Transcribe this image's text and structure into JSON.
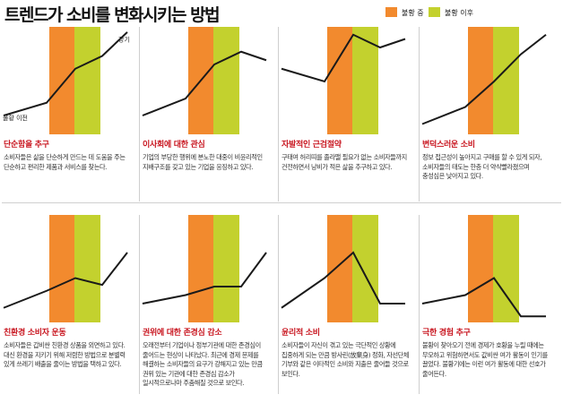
{
  "title": "트렌드가 소비를 변화시키는 방법",
  "legend": [
    {
      "label": "불황 중",
      "color": "#f28a2e"
    },
    {
      "label": "불황 이후",
      "color": "#c3d12e"
    }
  ],
  "colors": {
    "during": "#f28a2e",
    "after": "#c3d12e",
    "line": "#1a1a1a",
    "title_red": "#c8141e"
  },
  "chart_data": [
    {
      "type": "line",
      "title": "단순함을 추구",
      "description": "소비자들은 삶을 단순하게 만드는 데 도움을 주는 단순하고 편리한 제품과 서비스를 찾는다.",
      "x": [
        0,
        1,
        2,
        3,
        4
      ],
      "y": [
        20,
        35,
        75,
        90,
        118
      ],
      "annotations": [
        {
          "text": "장기",
          "at": 3
        },
        {
          "text": "불황 이전",
          "at": 0
        }
      ]
    },
    {
      "type": "line",
      "title": "이사회에 대한 관심",
      "description": "기업의 부당한 행위에 분노한 대중이 비윤리적인 지배구조를 갖고 있는 기업을 응징하고 있다.",
      "x": [
        0,
        1,
        2,
        3,
        4
      ],
      "y": [
        20,
        40,
        80,
        95,
        85
      ],
      "annotations": []
    },
    {
      "type": "line",
      "title": "자발적인 근검절약",
      "description": "구태여 허리띠를 졸라맬 필요가 없는 소비자들까지 건전하면서 낭비가 적은 삶을 추구하고 있다.",
      "x": [
        0,
        1,
        2,
        3,
        4
      ],
      "y": [
        75,
        60,
        115,
        100,
        110
      ],
      "annotations": []
    },
    {
      "type": "line",
      "title": "변덕스러운 소비",
      "description": "정보 접근성이 높아지고 구매를 할 수 있게 되자, 소비자들의 태도는 한층 더 약삭빨라졌으며 충성심은 낮아지고 있다.",
      "x": [
        0,
        1,
        2,
        3,
        4
      ],
      "y": [
        10,
        30,
        60,
        92,
        115
      ],
      "annotations": []
    },
    {
      "type": "line",
      "title": "친환경 소비자 운동",
      "description": "소비자들은 갑비싼 친환경 상품을 외면하고 있다. 대신 환경을 지키기 위해 저렴한 방법으로 분별력 있게 쓰레기 배출을 줄이는 방법을 택하고 있다.",
      "x": [
        0,
        1,
        2,
        3,
        4
      ],
      "y": [
        15,
        35,
        50,
        42,
        80
      ],
      "annotations": []
    },
    {
      "type": "line",
      "title": "권위에 대한 존경심 감소",
      "description": "오래전부터 기업이나 정부기관에 대한 존경심이 줄어드는 현상이 나타났다. 최근에 경제 문제를 해결하는 소비자들의 요구가 강해지고 있는 만큼 권위 있는 기관에 대한 존경심 감소가 일시적으로나마 주춤해질 것으로 보인다.",
      "x": [
        0,
        1,
        2,
        3,
        4
      ],
      "y": [
        20,
        30,
        40,
        40,
        80
      ],
      "annotations": []
    },
    {
      "type": "line",
      "title": "윤리적 소비",
      "description": "소비자들이 자신이 겪고 있는 극단적인 상황에 집중하게 되는 만큼 방사린(放棄身) 정화, 자선단체 기부와 같은 이타적인 소비와 지출은 줄어들 것으로 보인다.",
      "x": [
        0,
        1,
        2,
        3,
        4
      ],
      "y": [
        15,
        50,
        80,
        20,
        20
      ],
      "annotations": []
    },
    {
      "type": "line",
      "title": "극한 경험 추구",
      "description": "불황이 찾아오기 전에 경제가 호황을 누릴 때에는 무모하고 위험하면서도 값비싼 여가 활동이 인기를 끌었다. 불황기에는 이런 여가 활동에 대한 선호가 줄어든다.",
      "x": [
        0,
        1,
        2,
        3,
        4
      ],
      "y": [
        20,
        30,
        50,
        5,
        5
      ],
      "annotations": []
    }
  ]
}
